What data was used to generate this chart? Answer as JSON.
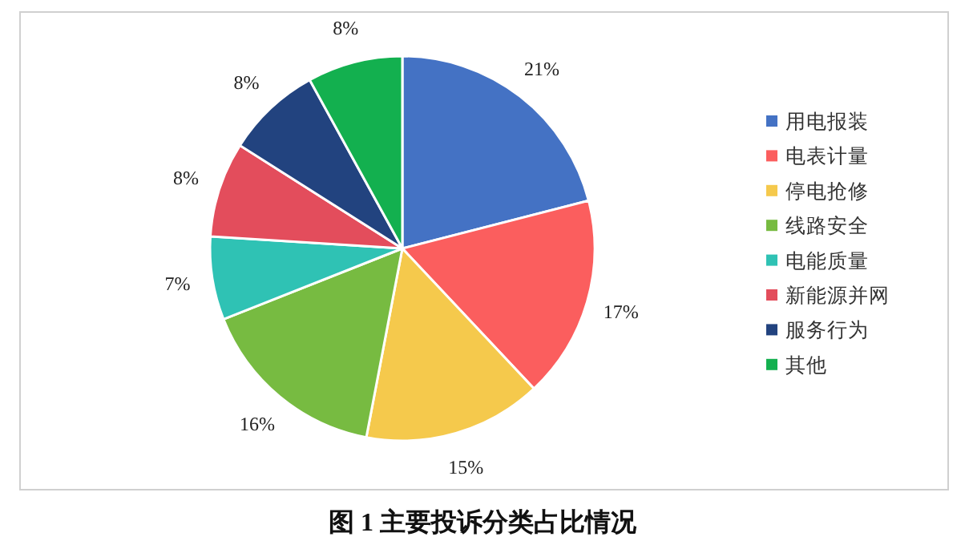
{
  "chart_data": {
    "type": "pie",
    "title": "图 1 主要投诉分类占比情况",
    "categories": [
      "用电报装",
      "电表计量",
      "停电抢修",
      "线路安全",
      "电能质量",
      "新能源并网",
      "服务行为",
      "其他"
    ],
    "values": [
      21,
      17,
      15,
      16,
      7,
      8,
      8,
      8
    ],
    "value_labels": [
      "21%",
      "17%",
      "15%",
      "16%",
      "7%",
      "8%",
      "8%",
      "8%"
    ],
    "colors": [
      "#4472c4",
      "#fb5e5e",
      "#f5c94c",
      "#77bb41",
      "#2fc2b4",
      "#e34d5c",
      "#22437f",
      "#13b04f"
    ],
    "legend": "right"
  }
}
